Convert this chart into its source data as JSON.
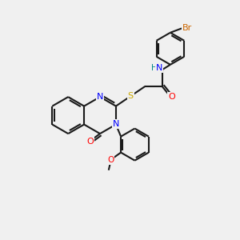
{
  "bg_color": "#f0f0f0",
  "bond_color": "#1a1a1a",
  "atom_colors": {
    "N": "#0000ff",
    "O": "#ff0000",
    "S": "#ccaa00",
    "Br": "#cc6600",
    "H": "#008888",
    "C": "#1a1a1a"
  },
  "figsize": [
    3.0,
    3.0
  ],
  "dpi": 100,
  "lw": 1.5
}
